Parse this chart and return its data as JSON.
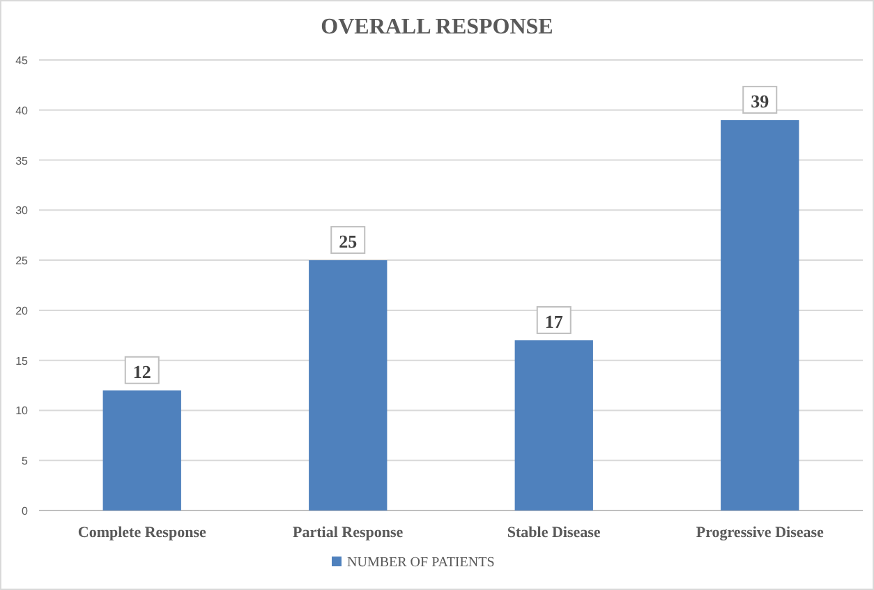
{
  "chart_data": {
    "type": "bar",
    "title": "OVERALL RESPONSE",
    "categories": [
      "Complete Response",
      "Partial Response",
      "Stable Disease",
      "Progressive Disease"
    ],
    "series": [
      {
        "name": "NUMBER OF PATIENTS",
        "color": "#4f81bd",
        "values": [
          12,
          25,
          17,
          39
        ]
      }
    ],
    "ylim": [
      0,
      45
    ],
    "yticks": [
      0,
      5,
      10,
      15,
      20,
      25,
      30,
      35,
      40,
      45
    ],
    "grid": "y",
    "legend": "bottom",
    "data_labels": true
  }
}
